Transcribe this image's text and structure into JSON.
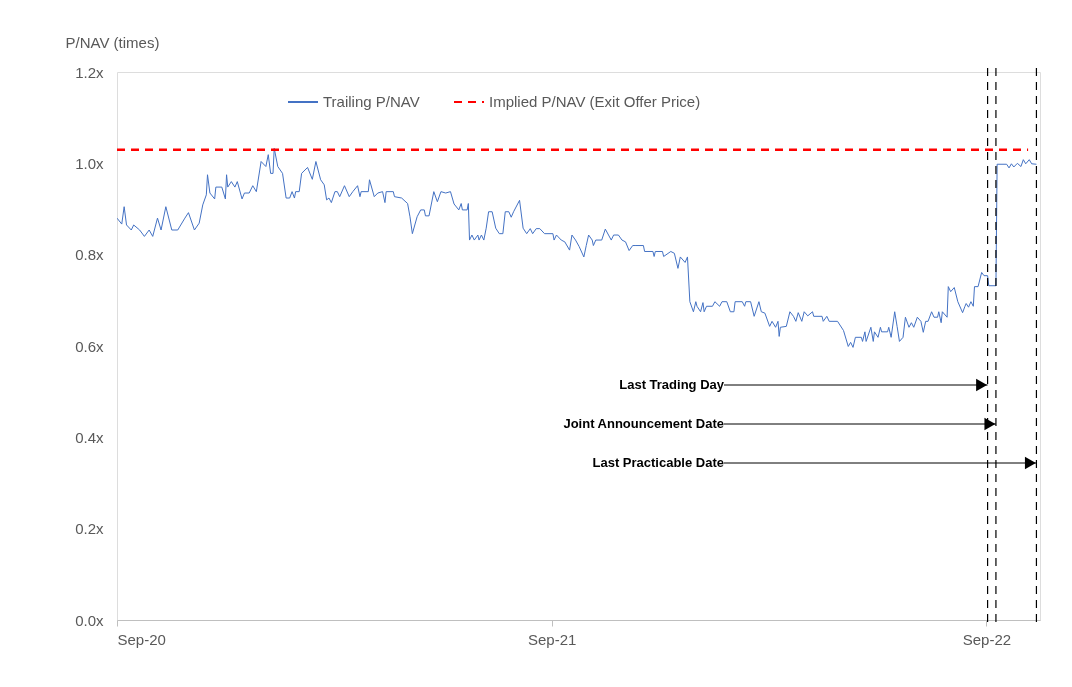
{
  "chart_data": {
    "type": "line",
    "ylabel": "P/NAV (times)",
    "legend": "top",
    "xlim": [
      "2020-09-01",
      "2022-10-16"
    ],
    "xticks": [
      {
        "value": "2020-09-01",
        "label": "Sep-20"
      },
      {
        "value": "2021-09-01",
        "label": "Sep-21"
      },
      {
        "value": "2022-09-01",
        "label": "Sep-22"
      }
    ],
    "ylim": [
      0,
      1.2
    ],
    "yticks": [
      {
        "value": 0,
        "label": "0.0x"
      },
      {
        "value": 0.2,
        "label": "0.2x"
      },
      {
        "value": 0.4,
        "label": "0.4x"
      },
      {
        "value": 0.6,
        "label": "0.6x"
      },
      {
        "value": 0.8,
        "label": "0.8x"
      },
      {
        "value": 1.0,
        "label": "1.0x"
      },
      {
        "value": 1.2,
        "label": "1.2x"
      }
    ],
    "grid": false,
    "series": [
      {
        "name": "Trailing P/NAV",
        "color": "#4472c4",
        "line_style": "solid",
        "x": [
          "2020-09-01",
          "2020-09-05",
          "2020-09-07",
          "2020-09-09",
          "2020-09-13",
          "2020-09-15",
          "2020-09-20",
          "2020-09-24",
          "2020-09-28",
          "2020-10-01",
          "2020-10-05",
          "2020-10-08",
          "2020-10-12",
          "2020-10-17",
          "2020-10-22",
          "2020-10-28",
          "2020-10-31",
          "2020-11-05",
          "2020-11-09",
          "2020-11-12",
          "2020-11-15",
          "2020-11-16",
          "2020-11-18",
          "2020-11-22",
          "2020-11-23",
          "2020-11-28",
          "2020-12-01",
          "2020-12-02",
          "2020-12-03",
          "2020-12-06",
          "2020-12-09",
          "2020-12-11",
          "2020-12-15",
          "2020-12-17",
          "2020-12-21",
          "2020-12-24",
          "2020-12-27",
          "2020-12-31",
          "2021-01-04",
          "2021-01-06",
          "2021-01-08",
          "2021-01-10",
          "2021-01-11",
          "2021-01-14",
          "2021-01-18",
          "2021-01-21",
          "2021-01-24",
          "2021-01-26",
          "2021-01-28",
          "2021-01-29",
          "2021-02-01",
          "2021-02-03",
          "2021-02-08",
          "2021-02-12",
          "2021-02-15",
          "2021-02-19",
          "2021-02-22",
          "2021-02-24",
          "2021-02-26",
          "2021-02-28",
          "2021-03-03",
          "2021-03-05",
          "2021-03-07",
          "2021-03-11",
          "2021-03-15",
          "2021-03-18",
          "2021-03-22",
          "2021-03-24",
          "2021-03-25",
          "2021-03-31",
          "2021-04-01",
          "2021-04-05",
          "2021-04-08",
          "2021-04-12",
          "2021-04-14",
          "2021-04-15",
          "2021-04-21",
          "2021-04-22",
          "2021-04-28",
          "2021-05-03",
          "2021-05-05",
          "2021-05-07",
          "2021-05-11",
          "2021-05-14",
          "2021-05-17",
          "2021-05-18",
          "2021-05-21",
          "2021-05-25",
          "2021-05-28",
          "2021-05-31",
          "2021-06-04",
          "2021-06-08",
          "2021-06-11",
          "2021-06-15",
          "2021-06-17",
          "2021-06-18",
          "2021-06-22",
          "2021-06-23",
          "2021-06-24",
          "2021-06-26",
          "2021-06-28",
          "2021-07-01",
          "2021-07-02",
          "2021-07-04",
          "2021-07-06",
          "2021-07-08",
          "2021-07-10",
          "2021-07-13",
          "2021-07-16",
          "2021-07-19",
          "2021-07-22",
          "2021-07-24",
          "2021-07-27",
          "2021-07-29",
          "2021-07-31",
          "2021-08-05",
          "2021-08-08",
          "2021-08-11",
          "2021-08-14",
          "2021-08-16",
          "2021-08-19",
          "2021-08-22",
          "2021-08-26",
          "2021-09-02",
          "2021-09-03",
          "2021-09-05",
          "2021-09-09",
          "2021-09-12",
          "2021-09-16",
          "2021-09-18",
          "2021-09-21",
          "2021-09-24",
          "2021-09-28",
          "2021-09-30",
          "2021-10-02",
          "2021-10-05",
          "2021-10-06",
          "2021-10-08",
          "2021-10-13",
          "2021-10-16",
          "2021-10-21",
          "2021-10-23",
          "2021-10-27",
          "2021-10-30",
          "2021-11-02",
          "2021-11-05",
          "2021-11-08",
          "2021-11-10",
          "2021-11-17",
          "2021-11-18",
          "2021-11-25",
          "2021-11-26",
          "2021-11-27",
          "2021-12-03",
          "2021-12-04",
          "2021-12-10",
          "2021-12-13",
          "2021-12-16",
          "2021-12-18",
          "2021-12-22",
          "2021-12-24",
          "2021-12-26",
          "2021-12-29",
          "2021-12-31",
          "2022-01-01",
          "2022-01-04",
          "2022-01-06",
          "2022-01-07",
          "2022-01-09",
          "2022-01-14",
          "2022-01-16",
          "2022-01-20",
          "2022-01-22",
          "2022-01-26",
          "2022-01-29",
          "2022-02-01",
          "2022-02-02",
          "2022-02-08",
          "2022-02-10",
          "2022-02-11",
          "2022-02-15",
          "2022-02-18",
          "2022-02-22",
          "2022-02-24",
          "2022-02-27",
          "2022-03-03",
          "2022-03-05",
          "2022-03-08",
          "2022-03-10",
          "2022-03-11",
          "2022-03-12",
          "2022-03-17",
          "2022-03-20",
          "2022-03-23",
          "2022-03-25",
          "2022-03-27",
          "2022-03-30",
          "2022-04-01",
          "2022-04-04",
          "2022-04-08",
          "2022-04-09",
          "2022-04-16",
          "2022-04-17",
          "2022-04-20",
          "2022-04-22",
          "2022-04-29",
          "2022-05-04",
          "2022-05-08",
          "2022-05-10",
          "2022-05-12",
          "2022-05-14",
          "2022-05-19",
          "2022-05-20",
          "2022-05-22",
          "2022-05-23",
          "2022-05-27",
          "2022-05-29",
          "2022-05-30",
          "2022-06-02",
          "2022-06-04",
          "2022-06-05",
          "2022-06-10",
          "2022-06-11",
          "2022-06-13",
          "2022-06-16",
          "2022-06-18",
          "2022-06-20",
          "2022-06-23",
          "2022-06-25",
          "2022-06-28",
          "2022-06-30",
          "2022-07-02",
          "2022-07-05",
          "2022-07-08",
          "2022-07-10",
          "2022-07-12",
          "2022-07-14",
          "2022-07-17",
          "2022-07-19",
          "2022-07-22",
          "2022-07-23",
          "2022-07-25",
          "2022-07-26",
          "2022-07-30",
          "2022-07-31",
          "2022-08-02",
          "2022-08-05",
          "2022-08-08",
          "2022-08-12",
          "2022-08-14",
          "2022-08-15",
          "2022-08-17",
          "2022-08-19",
          "2022-08-21",
          "2022-08-22",
          "2022-08-25",
          "2022-08-28",
          "2022-08-30",
          "2022-09-02",
          "2022-09-03",
          "2022-09-09",
          "2022-09-10",
          "2022-09-18",
          "2022-09-20",
          "2022-09-22",
          "2022-09-24",
          "2022-09-27",
          "2022-09-30",
          "2022-10-02",
          "2022-10-04",
          "2022-10-07",
          "2022-10-09",
          "2022-10-13"
        ],
        "values": [
          0.88,
          0.867,
          0.905,
          0.865,
          0.854,
          0.865,
          0.854,
          0.84,
          0.854,
          0.84,
          0.88,
          0.854,
          0.905,
          0.854,
          0.854,
          0.88,
          0.892,
          0.854,
          0.869,
          0.909,
          0.931,
          0.975,
          0.935,
          0.922,
          0.948,
          0.948,
          0.922,
          0.975,
          0.948,
          0.96,
          0.948,
          0.96,
          0.922,
          0.935,
          0.935,
          0.951,
          0.938,
          1.004,
          0.993,
          1.019,
          0.978,
          0.978,
          1.033,
          0.993,
          0.978,
          0.924,
          0.924,
          0.938,
          0.924,
          0.938,
          0.938,
          0.978,
          0.991,
          0.965,
          1.004,
          0.964,
          0.953,
          0.92,
          0.924,
          0.914,
          0.938,
          0.938,
          0.927,
          0.951,
          0.927,
          0.938,
          0.951,
          0.927,
          0.938,
          0.938,
          0.964,
          0.927,
          0.935,
          0.938,
          0.914,
          0.938,
          0.938,
          0.927,
          0.924,
          0.912,
          0.883,
          0.846,
          0.883,
          0.898,
          0.898,
          0.885,
          0.885,
          0.938,
          0.916,
          0.938,
          0.935,
          0.938,
          0.911,
          0.898,
          0.912,
          0.898,
          0.898,
          0.912,
          0.832,
          0.843,
          0.832,
          0.843,
          0.832,
          0.843,
          0.832,
          0.858,
          0.894,
          0.894,
          0.858,
          0.846,
          0.846,
          0.894,
          0.894,
          0.882,
          0.894,
          0.919,
          0.858,
          0.846,
          0.857,
          0.846,
          0.857,
          0.857,
          0.846,
          0.846,
          0.832,
          0.843,
          0.832,
          0.828,
          0.81,
          0.843,
          0.832,
          0.818,
          0.795,
          0.82,
          0.843,
          0.832,
          0.82,
          0.832,
          0.832,
          0.856,
          0.832,
          0.843,
          0.843,
          0.832,
          0.828,
          0.809,
          0.82,
          0.82,
          0.82,
          0.807,
          0.807,
          0.796,
          0.807,
          0.807,
          0.796,
          0.807,
          0.803,
          0.77,
          0.795,
          0.783,
          0.795,
          0.697,
          0.675,
          0.697,
          0.687,
          0.675,
          0.695,
          0.675,
          0.687,
          0.687,
          0.697,
          0.687,
          0.697,
          0.697,
          0.675,
          0.675,
          0.697,
          0.697,
          0.687,
          0.697,
          0.697,
          0.665,
          0.697,
          0.675,
          0.672,
          0.643,
          0.654,
          0.641,
          0.654,
          0.621,
          0.641,
          0.643,
          0.675,
          0.665,
          0.654,
          0.673,
          0.654,
          0.675,
          0.666,
          0.675,
          0.665,
          0.665,
          0.654,
          0.665,
          0.654,
          0.654,
          0.634,
          0.599,
          0.608,
          0.597,
          0.619,
          0.619,
          0.61,
          0.631,
          0.61,
          0.641,
          0.61,
          0.631,
          0.619,
          0.641,
          0.631,
          0.631,
          0.641,
          0.619,
          0.675,
          0.643,
          0.61,
          0.619,
          0.663,
          0.641,
          0.651,
          0.641,
          0.663,
          0.654,
          0.63,
          0.654,
          0.654,
          0.675,
          0.663,
          0.663,
          0.675,
          0.651,
          0.675,
          0.663,
          0.73,
          0.719,
          0.728,
          0.697,
          0.673,
          0.687,
          0.693,
          0.685,
          0.697,
          0.687,
          0.73,
          0.73,
          0.761,
          0.754,
          0.754,
          0.732,
          0.732,
          0.998,
          0.998,
          0.99,
          0.999,
          0.992,
          1.0,
          0.993,
          1.008,
          0.999,
          1.008,
          0.999,
          0.998
        ]
      },
      {
        "name": "Implied P/NAV (Exit Offer Price)",
        "color": "#ff0000",
        "line_style": "dashed",
        "x": [
          "2020-09-01",
          "2022-10-06"
        ],
        "values": [
          1.03,
          1.03
        ]
      }
    ],
    "ref_lines": [
      {
        "axis": "x",
        "value": "2022-09-02",
        "label": "Last Trading Day",
        "color": "#000000",
        "line_style": "dashed"
      },
      {
        "axis": "x",
        "value": "2022-09-09",
        "label": "Joint Announcement Date",
        "color": "#000000",
        "line_style": "dashed"
      },
      {
        "axis": "x",
        "value": "2022-10-13",
        "label": "Last Practicable Date",
        "color": "#000000",
        "line_style": "dashed"
      }
    ]
  }
}
